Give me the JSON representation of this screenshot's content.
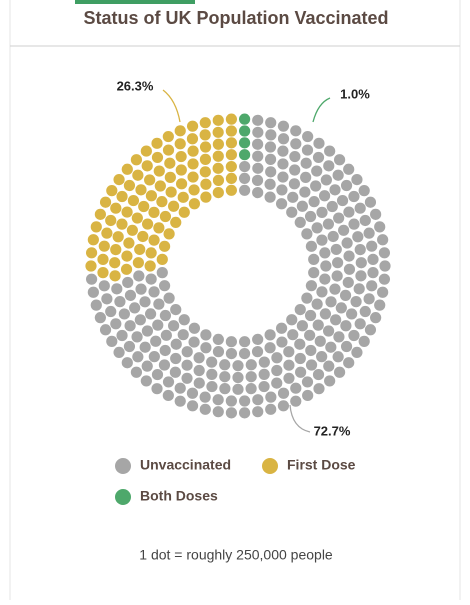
{
  "chart_data": {
    "type": "dot-donut",
    "title": "Status of UK Population Vaccinated",
    "categories": [
      "Unvaccinated",
      "First Dose",
      "Both Doses"
    ],
    "values": [
      72.7,
      26.3,
      1.0
    ],
    "value_labels": [
      "72.7%",
      "26.3%",
      "1.0%"
    ],
    "colors": [
      "#a6a6a6",
      "#d9b443",
      "#4ea86b"
    ],
    "note": "1 dot = roughly 250,000 people"
  }
}
